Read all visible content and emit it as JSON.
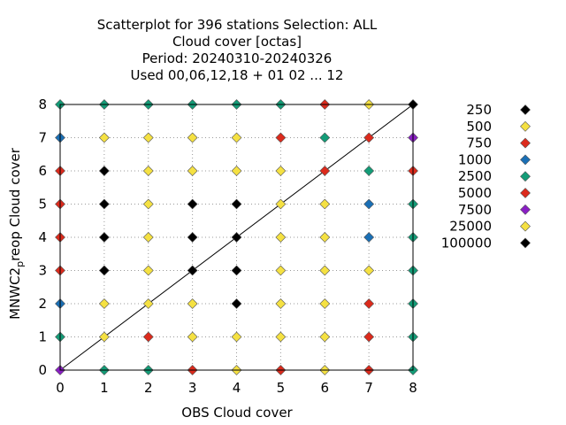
{
  "chart_data": {
    "type": "scatter",
    "title_lines": [
      "Scatterplot for  396 stations Selection: ALL",
      "Cloud cover [octas]",
      "Period: 20240310-20240326",
      "Used  00,06,12,18 + 01 02 ... 12"
    ],
    "xlabel": "OBS Cloud cover",
    "ylabel_parts": {
      "pre": "MNWC2",
      "sub": "p",
      "post": "reop Cloud cover"
    },
    "xlim": [
      0,
      8
    ],
    "ylim": [
      0,
      8
    ],
    "xticks": [
      "0",
      "1",
      "2",
      "3",
      "4",
      "5",
      "6",
      "7",
      "8"
    ],
    "yticks": [
      "0",
      "1",
      "2",
      "3",
      "4",
      "5",
      "6",
      "7",
      "8"
    ],
    "grid": true,
    "diagonal_line": true,
    "legend_position": "right",
    "legend": [
      {
        "label": "250",
        "color": "#000000"
      },
      {
        "label": "500",
        "color": "#f5e142"
      },
      {
        "label": "750",
        "color": "#dc2a1c"
      },
      {
        "label": "1000",
        "color": "#1a6fb5"
      },
      {
        "label": "2500",
        "color": "#139c77"
      },
      {
        "label": "5000",
        "color": "#dc2a1c"
      },
      {
        "label": "7500",
        "color": "#8a1fc4"
      },
      {
        "label": "25000",
        "color": "#f5e142"
      },
      {
        "label": "100000",
        "color": "#000000"
      }
    ],
    "points": [
      {
        "x": 0,
        "y": 8,
        "cls": 4
      },
      {
        "x": 1,
        "y": 8,
        "cls": 4
      },
      {
        "x": 2,
        "y": 8,
        "cls": 4
      },
      {
        "x": 3,
        "y": 8,
        "cls": 4
      },
      {
        "x": 4,
        "y": 8,
        "cls": 4
      },
      {
        "x": 5,
        "y": 8,
        "cls": 4
      },
      {
        "x": 6,
        "y": 8,
        "cls": 5
      },
      {
        "x": 7,
        "y": 8,
        "cls": 1
      },
      {
        "x": 8,
        "y": 8,
        "cls": 8
      },
      {
        "x": 0,
        "y": 7,
        "cls": 3
      },
      {
        "x": 1,
        "y": 7,
        "cls": 1
      },
      {
        "x": 2,
        "y": 7,
        "cls": 1
      },
      {
        "x": 3,
        "y": 7,
        "cls": 1
      },
      {
        "x": 4,
        "y": 7,
        "cls": 1
      },
      {
        "x": 5,
        "y": 7,
        "cls": 5
      },
      {
        "x": 6,
        "y": 7,
        "cls": 4
      },
      {
        "x": 7,
        "y": 7,
        "cls": 5
      },
      {
        "x": 8,
        "y": 7,
        "cls": 6
      },
      {
        "x": 0,
        "y": 6,
        "cls": 2
      },
      {
        "x": 1,
        "y": 6,
        "cls": 0
      },
      {
        "x": 2,
        "y": 6,
        "cls": 1
      },
      {
        "x": 3,
        "y": 6,
        "cls": 1
      },
      {
        "x": 4,
        "y": 6,
        "cls": 1
      },
      {
        "x": 5,
        "y": 6,
        "cls": 1
      },
      {
        "x": 6,
        "y": 6,
        "cls": 5
      },
      {
        "x": 7,
        "y": 6,
        "cls": 4
      },
      {
        "x": 8,
        "y": 6,
        "cls": 2
      },
      {
        "x": 0,
        "y": 5,
        "cls": 2
      },
      {
        "x": 1,
        "y": 5,
        "cls": 0
      },
      {
        "x": 2,
        "y": 5,
        "cls": 1
      },
      {
        "x": 3,
        "y": 5,
        "cls": 0
      },
      {
        "x": 4,
        "y": 5,
        "cls": 0
      },
      {
        "x": 5,
        "y": 5,
        "cls": 1
      },
      {
        "x": 6,
        "y": 5,
        "cls": 1
      },
      {
        "x": 7,
        "y": 5,
        "cls": 3
      },
      {
        "x": 8,
        "y": 5,
        "cls": 4
      },
      {
        "x": 0,
        "y": 4,
        "cls": 2
      },
      {
        "x": 1,
        "y": 4,
        "cls": 0
      },
      {
        "x": 2,
        "y": 4,
        "cls": 1
      },
      {
        "x": 3,
        "y": 4,
        "cls": 0
      },
      {
        "x": 4,
        "y": 4,
        "cls": 0
      },
      {
        "x": 5,
        "y": 4,
        "cls": 1
      },
      {
        "x": 6,
        "y": 4,
        "cls": 1
      },
      {
        "x": 7,
        "y": 4,
        "cls": 3
      },
      {
        "x": 8,
        "y": 4,
        "cls": 4
      },
      {
        "x": 0,
        "y": 3,
        "cls": 2
      },
      {
        "x": 1,
        "y": 3,
        "cls": 0
      },
      {
        "x": 2,
        "y": 3,
        "cls": 1
      },
      {
        "x": 3,
        "y": 3,
        "cls": 0
      },
      {
        "x": 4,
        "y": 3,
        "cls": 0
      },
      {
        "x": 5,
        "y": 3,
        "cls": 1
      },
      {
        "x": 6,
        "y": 3,
        "cls": 1
      },
      {
        "x": 7,
        "y": 3,
        "cls": 1
      },
      {
        "x": 8,
        "y": 3,
        "cls": 4
      },
      {
        "x": 0,
        "y": 2,
        "cls": 3
      },
      {
        "x": 1,
        "y": 2,
        "cls": 1
      },
      {
        "x": 2,
        "y": 2,
        "cls": 1
      },
      {
        "x": 3,
        "y": 2,
        "cls": 1
      },
      {
        "x": 4,
        "y": 2,
        "cls": 0
      },
      {
        "x": 5,
        "y": 2,
        "cls": 1
      },
      {
        "x": 6,
        "y": 2,
        "cls": 1
      },
      {
        "x": 7,
        "y": 2,
        "cls": 2
      },
      {
        "x": 8,
        "y": 2,
        "cls": 4
      },
      {
        "x": 0,
        "y": 1,
        "cls": 4
      },
      {
        "x": 1,
        "y": 1,
        "cls": 1
      },
      {
        "x": 2,
        "y": 1,
        "cls": 2
      },
      {
        "x": 3,
        "y": 1,
        "cls": 1
      },
      {
        "x": 4,
        "y": 1,
        "cls": 1
      },
      {
        "x": 5,
        "y": 1,
        "cls": 1
      },
      {
        "x": 6,
        "y": 1,
        "cls": 1
      },
      {
        "x": 7,
        "y": 1,
        "cls": 2
      },
      {
        "x": 8,
        "y": 1,
        "cls": 4
      },
      {
        "x": 0,
        "y": 0,
        "cls": 6
      },
      {
        "x": 1,
        "y": 0,
        "cls": 4
      },
      {
        "x": 2,
        "y": 0,
        "cls": 4
      },
      {
        "x": 3,
        "y": 0,
        "cls": 2
      },
      {
        "x": 4,
        "y": 0,
        "cls": 1
      },
      {
        "x": 5,
        "y": 0,
        "cls": 2
      },
      {
        "x": 6,
        "y": 0,
        "cls": 1
      },
      {
        "x": 7,
        "y": 0,
        "cls": 2
      },
      {
        "x": 8,
        "y": 0,
        "cls": 4
      }
    ]
  }
}
